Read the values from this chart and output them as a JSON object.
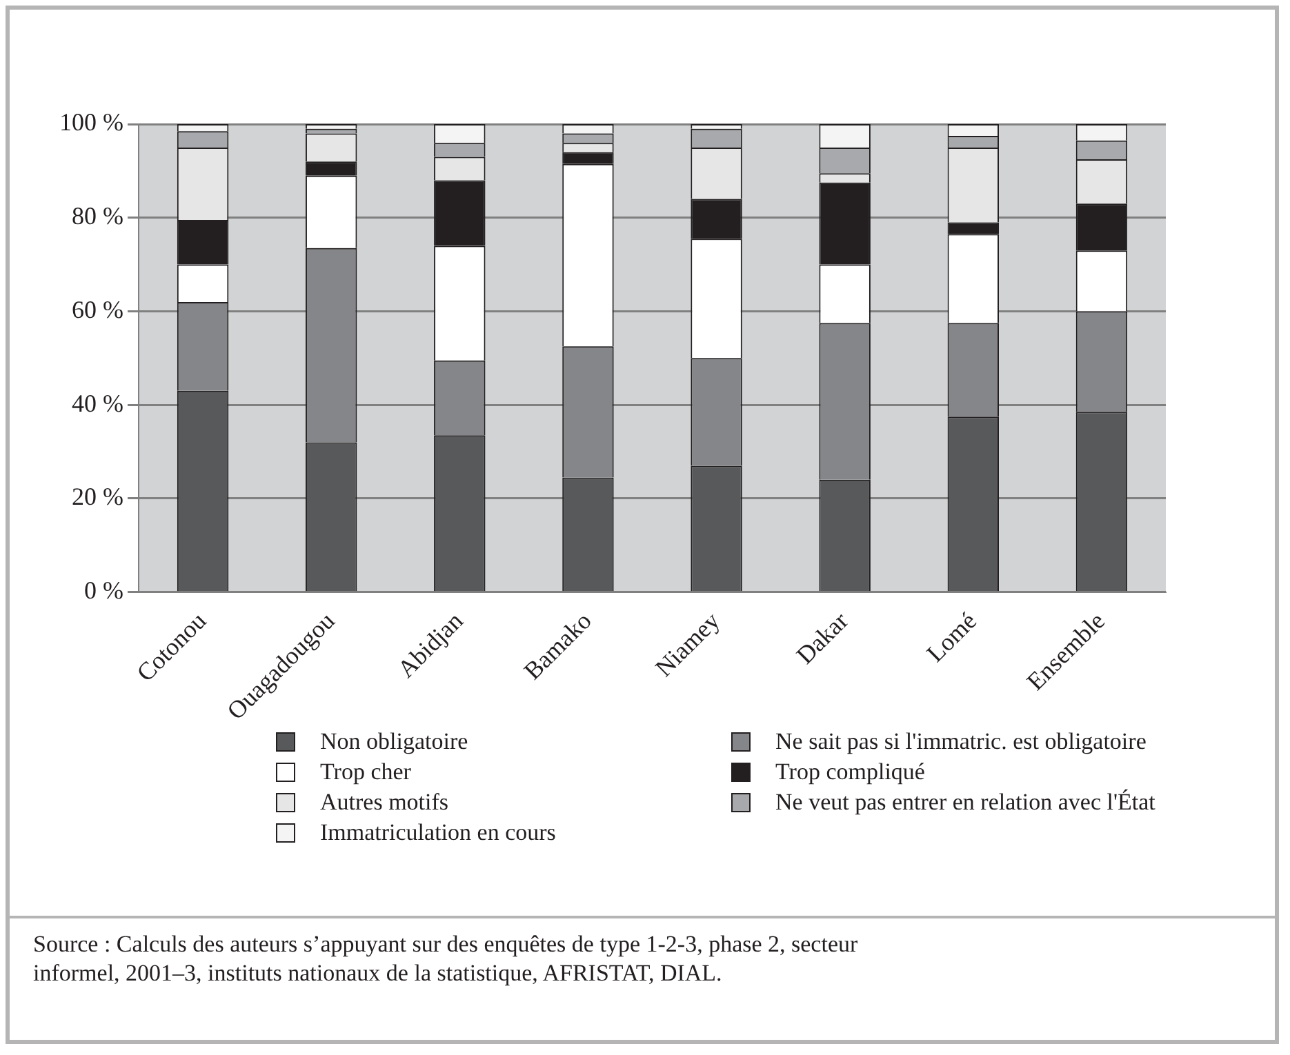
{
  "chart_data": {
    "type": "bar",
    "stacked": true,
    "categories": [
      "Cotonou",
      "Ouagadougou",
      "Abidjan",
      "Bamako",
      "Niamey",
      "Dakar",
      "Lomé",
      "Ensemble"
    ],
    "series": [
      {
        "name": "Non obligatoire",
        "color": "#58595b",
        "values": [
          43,
          32,
          33.5,
          24.5,
          27,
          24,
          37.5,
          38.5
        ]
      },
      {
        "name": "Ne sait pas si l'immatric. est obligatoire",
        "color": "#858689",
        "values": [
          19,
          41.5,
          16,
          28,
          23,
          33.5,
          20,
          21.5
        ]
      },
      {
        "name": "Trop cher",
        "color": "#ffffff",
        "values": [
          8,
          15.5,
          24.5,
          39,
          25.5,
          12.5,
          19,
          13
        ]
      },
      {
        "name": "Trop compliqué",
        "color": "#231f20",
        "values": [
          9.5,
          3,
          14,
          2.5,
          8.5,
          17.5,
          2.5,
          10
        ]
      },
      {
        "name": "Autres motifs",
        "color": "#e6e6e6",
        "values": [
          15.5,
          6,
          5,
          2,
          11,
          2,
          16,
          9.5
        ]
      },
      {
        "name": "Ne veut pas entrer en relation avec l'État",
        "color": "#a7a9ac",
        "values": [
          3.5,
          1,
          3,
          2,
          4,
          5.5,
          2.5,
          4
        ]
      },
      {
        "name": "Immatriculation en cours",
        "color": "#f4f4f4",
        "values": [
          1.5,
          1,
          4,
          2,
          1,
          5,
          2.5,
          3.5
        ]
      }
    ],
    "ylim": [
      0,
      100
    ],
    "yticks": [
      {
        "value": 0,
        "label": "0 %"
      },
      {
        "value": 20,
        "label": "20 %"
      },
      {
        "value": 40,
        "label": "40 %"
      },
      {
        "value": 60,
        "label": "60 %"
      },
      {
        "value": 80,
        "label": "80 %"
      },
      {
        "value": 100,
        "label": "100 %"
      }
    ],
    "grid": "y",
    "legend": "bottom",
    "annotations": [
      "Source : Calculs des auteurs s’appuyant sur des enquêtes de type 1-2-3, phase 2, secteur informel, 2001–3, instituts nationaux de la statistique, AFRISTAT, DIAL."
    ]
  }
}
